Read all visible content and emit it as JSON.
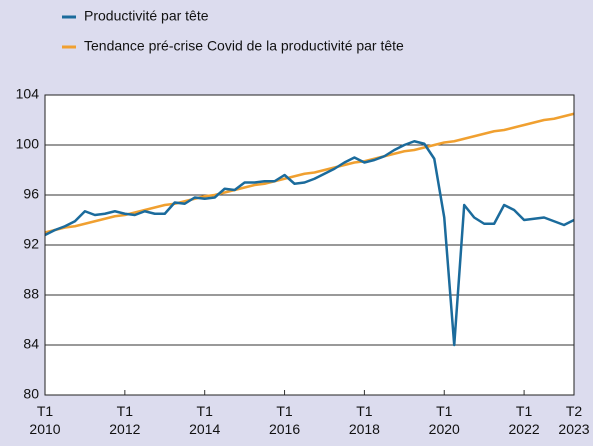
{
  "chart_data": {
    "type": "line",
    "categories": [
      "T1\n2010",
      null,
      null,
      null,
      null,
      null,
      null,
      null,
      "T1\n2012",
      null,
      null,
      null,
      null,
      null,
      null,
      null,
      "T1\n2014",
      null,
      null,
      null,
      null,
      null,
      null,
      null,
      "T1\n2016",
      null,
      null,
      null,
      null,
      null,
      null,
      null,
      "T1\n2018",
      null,
      null,
      null,
      null,
      null,
      null,
      null,
      "T1\n2020",
      null,
      null,
      null,
      null,
      null,
      null,
      null,
      "T1\n2022",
      null,
      null,
      null,
      null,
      "T2\n2023"
    ],
    "series": [
      {
        "name": "Productivité par tête",
        "color": "#1b6b9c",
        "values": [
          92.8,
          93.2,
          93.5,
          93.9,
          94.7,
          94.4,
          94.5,
          94.7,
          94.5,
          94.4,
          94.7,
          94.5,
          94.5,
          95.4,
          95.3,
          95.8,
          95.7,
          95.8,
          96.5,
          96.4,
          97.0,
          97.0,
          97.1,
          97.1,
          97.6,
          96.9,
          97.0,
          97.3,
          97.7,
          98.1,
          98.6,
          99.0,
          98.6,
          98.8,
          99.1,
          99.6,
          100.0,
          100.3,
          100.1,
          98.9,
          94.2,
          84.0,
          95.2,
          94.2,
          93.7,
          93.7,
          95.2,
          94.8,
          94.0,
          94.1,
          94.2,
          93.9,
          93.6,
          94.0
        ]
      },
      {
        "name": "Tendance pré-crise Covid de la productivité par tête",
        "color": "#f0a030",
        "values": [
          93.0,
          93.2,
          93.4,
          93.5,
          93.7,
          93.9,
          94.1,
          94.3,
          94.4,
          94.6,
          94.8,
          95.0,
          95.2,
          95.3,
          95.5,
          95.7,
          95.9,
          96.0,
          96.2,
          96.4,
          96.6,
          96.8,
          96.9,
          97.1,
          97.3,
          97.5,
          97.7,
          97.8,
          98.0,
          98.2,
          98.4,
          98.6,
          98.7,
          98.9,
          99.1,
          99.3,
          99.5,
          99.6,
          99.8,
          100.0,
          100.2,
          100.3,
          100.5,
          100.7,
          100.9,
          101.1,
          101.2,
          101.4,
          101.6,
          101.8,
          102.0,
          102.1,
          102.3,
          102.5
        ]
      }
    ],
    "ylim": [
      80,
      104
    ],
    "yticks": [
      80,
      84,
      88,
      92,
      96,
      100,
      104
    ],
    "grid": true,
    "legend": "top-left"
  }
}
